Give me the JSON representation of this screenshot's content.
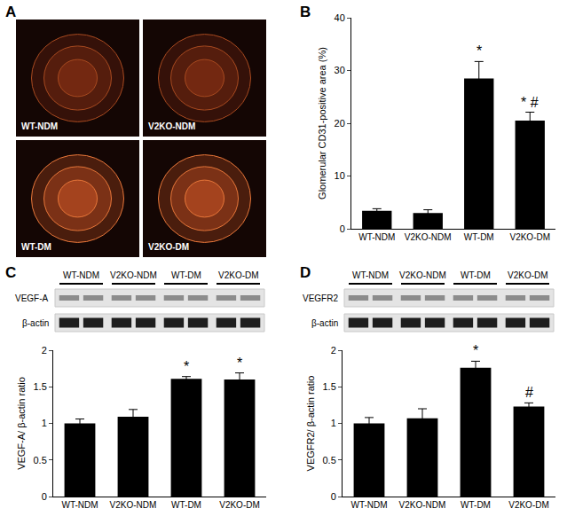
{
  "image_panel": {
    "panel_label": "A",
    "images": [
      "WT-NDM",
      "V2KO-NDM",
      "WT-DM",
      "V2KO-DM"
    ]
  },
  "chart_data": [
    {
      "panel_label": "B",
      "type": "bar",
      "categories": [
        "WT-NDM",
        "V2KO-NDM",
        "WT-DM",
        "V2KO-DM"
      ],
      "values": [
        3.4,
        3.0,
        28.5,
        20.5
      ],
      "errors": [
        0.4,
        0.6,
        3.2,
        1.6
      ],
      "color": "#000000",
      "y_label": "Glomerular CD31-positive area (%)",
      "ylim": [
        0,
        40
      ],
      "yticks": [
        0,
        10,
        20,
        30,
        40
      ],
      "grid": false,
      "annotations": [
        {
          "category": "WT-DM",
          "text": "*"
        },
        {
          "category": "V2KO-DM",
          "text": "* #"
        }
      ]
    },
    {
      "panel_label": "C",
      "type": "bar",
      "categories": [
        "WT-NDM",
        "V2KO-NDM",
        "WT-DM",
        "V2KO-DM"
      ],
      "values": [
        1.0,
        1.09,
        1.61,
        1.6
      ],
      "errors": [
        0.06,
        0.1,
        0.03,
        0.09
      ],
      "color": "#000000",
      "y_label": "VEGF-A/ β-actin ratio",
      "ylim": [
        0,
        2
      ],
      "yticks": [
        0,
        0.5,
        1,
        1.5,
        2
      ],
      "grid": false,
      "annotations": [
        {
          "category": "WT-DM",
          "text": "*"
        },
        {
          "category": "V2KO-DM",
          "text": "*"
        }
      ],
      "blot": {
        "group_labels": [
          "WT-NDM",
          "V2KO-NDM",
          "WT-DM",
          "V2KO-DM"
        ],
        "rows": [
          "VEGF-A",
          "β-actin"
        ]
      }
    },
    {
      "panel_label": "D",
      "type": "bar",
      "categories": [
        "WT-NDM",
        "V2KO-NDM",
        "WT-DM",
        "V2KO-DM"
      ],
      "values": [
        1.0,
        1.07,
        1.76,
        1.23
      ],
      "errors": [
        0.08,
        0.13,
        0.09,
        0.05
      ],
      "color": "#000000",
      "y_label": "VEGFR2/ β-actin ratio",
      "ylim": [
        0,
        2
      ],
      "yticks": [
        0,
        0.5,
        1,
        1.5,
        2
      ],
      "grid": false,
      "annotations": [
        {
          "category": "WT-DM",
          "text": "*"
        },
        {
          "category": "V2KO-DM",
          "text": "#"
        }
      ],
      "blot": {
        "group_labels": [
          "WT-NDM",
          "V2KO-NDM",
          "WT-DM",
          "V2KO-DM"
        ],
        "rows": [
          "VEGFR2",
          "β-actin"
        ]
      }
    }
  ]
}
